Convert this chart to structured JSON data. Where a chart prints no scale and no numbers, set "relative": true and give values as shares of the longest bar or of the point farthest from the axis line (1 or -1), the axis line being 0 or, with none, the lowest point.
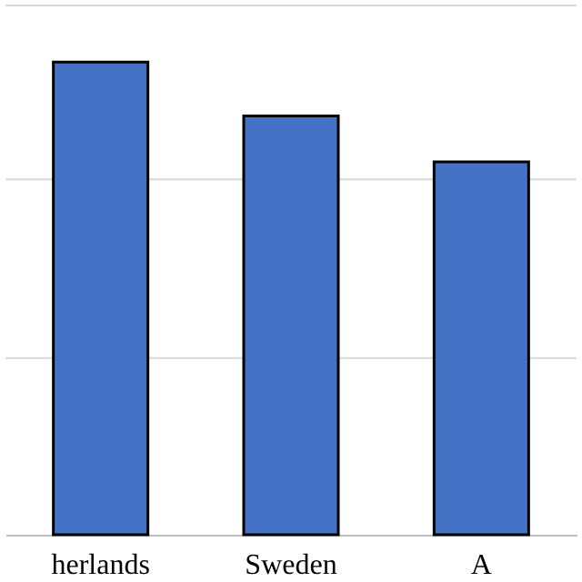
{
  "chart_data": {
    "type": "bar",
    "relative": true,
    "categories": [
      "herlands",
      "Sweden",
      "A"
    ],
    "values": [
      1,
      0.886,
      0.789
    ],
    "color": "#4472c4",
    "ref_lines": [
      {
        "axis": "y",
        "value": 0.374,
        "color": "#d9d9d9"
      },
      {
        "axis": "y",
        "value": 0.752,
        "color": "#d9d9d9"
      },
      {
        "axis": "y",
        "value": 1.12,
        "color": "#d9d9d9"
      }
    ]
  }
}
